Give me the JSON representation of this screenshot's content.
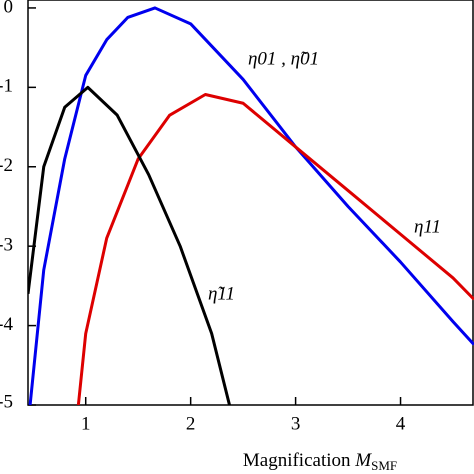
{
  "chart_data": {
    "type": "line",
    "x_label": "Magnification",
    "x_label_symbol": "M",
    "x_label_sub": "SMF",
    "xlim": [
      0.45,
      4.7
    ],
    "xticks": [
      1,
      2,
      3,
      4
    ],
    "ylim": [
      -5,
      0.1
    ],
    "yticks": [
      0,
      -1,
      -2,
      -3,
      -4,
      -5
    ],
    "series": [
      {
        "name": "η01 , η̃01",
        "color": "#0000ee",
        "x": [
          0.47,
          0.6,
          0.8,
          1.0,
          1.2,
          1.4,
          1.66,
          2.0,
          2.5,
          3.0,
          3.5,
          4.0,
          4.5,
          4.7
        ],
        "values": [
          -5,
          -3.3,
          -1.9,
          -0.85,
          -0.4,
          -0.12,
          0,
          -0.2,
          -0.9,
          -1.75,
          -2.5,
          -3.2,
          -3.95,
          -4.24
        ]
      },
      {
        "name": "η11",
        "color": "#dd0000",
        "x": [
          0.93,
          1.0,
          1.2,
          1.5,
          1.8,
          2.14,
          2.5,
          3.0,
          3.5,
          4.0,
          4.5,
          4.7
        ],
        "values": [
          -5,
          -4.1,
          -2.9,
          -1.9,
          -1.35,
          -1.09,
          -1.2,
          -1.75,
          -2.3,
          -2.85,
          -3.4,
          -3.67
        ]
      },
      {
        "name": "η̃11",
        "color": "#000000",
        "x": [
          0.45,
          0.6,
          0.8,
          1.02,
          1.3,
          1.6,
          1.9,
          2.2,
          2.37
        ],
        "values": [
          -3.6,
          -2.0,
          -1.25,
          -1.0,
          -1.35,
          -2.1,
          -3.0,
          -4.1,
          -5
        ]
      }
    ]
  }
}
